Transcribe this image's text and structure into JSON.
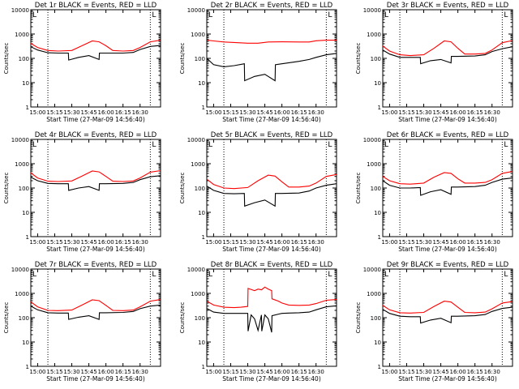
{
  "colors": {
    "events": "#000000",
    "lld": "#ff0000",
    "axes": "#000000",
    "background": "#ffffff"
  },
  "shared": {
    "xlabel": "Start Time (27-Mar-09 14:56:40)",
    "ylabel": "Counts/sec",
    "xticks": [
      "15:00",
      "15:15",
      "15:30",
      "15:45",
      "16:00",
      "16:15",
      "16:30"
    ],
    "yticks": [
      "1",
      "10",
      "100",
      "1000",
      "10000"
    ],
    "corner_marker": "L"
  },
  "chart_data": [
    {
      "type": "line",
      "title": "Det 1r BLACK = Events, RED = LLD",
      "x_range_min": [
        -2,
        36
      ],
      "y_scale": "log",
      "ylim": [
        1,
        10000
      ],
      "vlines_min": [
        3,
        33
      ],
      "series": [
        {
          "name": "RED",
          "color": "#ff0000",
          "x": [
            -2,
            0,
            3,
            6,
            10,
            13,
            16,
            18,
            20,
            22,
            25,
            28,
            30,
            33,
            36
          ],
          "values": [
            410,
            280,
            210,
            200,
            210,
            330,
            520,
            480,
            330,
            210,
            200,
            210,
            280,
            480,
            560
          ]
        },
        {
          "name": "BLACK",
          "color": "#000000",
          "x": [
            -2,
            0,
            3,
            6,
            9,
            9.1,
            12,
            15,
            18,
            18.1,
            20,
            25,
            28,
            30,
            33,
            36
          ],
          "values": [
            300,
            220,
            170,
            165,
            165,
            85,
            110,
            130,
            90,
            165,
            165,
            165,
            175,
            230,
            310,
            340
          ]
        }
      ]
    },
    {
      "type": "line",
      "title": "Det 2r BLACK = Events, RED = LLD",
      "x_range_min": [
        -2,
        36
      ],
      "y_scale": "log",
      "ylim": [
        1,
        10000
      ],
      "vlines_min": [
        3,
        33
      ],
      "series": [
        {
          "name": "RED",
          "color": "#ff0000",
          "x": [
            -2,
            0,
            3,
            6,
            10,
            13,
            16,
            20,
            25,
            28,
            30,
            33,
            36
          ],
          "values": [
            560,
            520,
            470,
            450,
            420,
            420,
            470,
            480,
            470,
            470,
            530,
            560,
            560
          ]
        },
        {
          "name": "BLACK",
          "color": "#000000",
          "x": [
            -2,
            0,
            3,
            6,
            9,
            9.1,
            12,
            15,
            18,
            18.1,
            20,
            25,
            28,
            30,
            33,
            36
          ],
          "values": [
            100,
            55,
            45,
            50,
            60,
            12,
            18,
            22,
            12,
            55,
            60,
            75,
            90,
            110,
            140,
            160
          ]
        }
      ]
    },
    {
      "type": "line",
      "title": "Det 3r BLACK = Events, RED = LLD",
      "x_range_min": [
        -2,
        36
      ],
      "y_scale": "log",
      "ylim": [
        1,
        10000
      ],
      "vlines_min": [
        3,
        33
      ],
      "series": [
        {
          "name": "RED",
          "color": "#ff0000",
          "x": [
            -2,
            0,
            3,
            6,
            10,
            13,
            16,
            18,
            20,
            22,
            25,
            28,
            30,
            33,
            36
          ],
          "values": [
            320,
            200,
            140,
            130,
            140,
            260,
            520,
            480,
            260,
            150,
            150,
            160,
            220,
            440,
            540
          ]
        },
        {
          "name": "BLACK",
          "color": "#000000",
          "x": [
            -2,
            0,
            3,
            6,
            9,
            9.1,
            12,
            15,
            18,
            18.1,
            20,
            25,
            28,
            30,
            33,
            36
          ],
          "values": [
            220,
            150,
            110,
            110,
            110,
            60,
            80,
            90,
            65,
            120,
            120,
            125,
            140,
            190,
            250,
            300
          ]
        }
      ]
    },
    {
      "type": "line",
      "title": "Det 4r BLACK = Events, RED = LLD",
      "x_range_min": [
        -2,
        36
      ],
      "y_scale": "log",
      "ylim": [
        1,
        10000
      ],
      "vlines_min": [
        3,
        33
      ],
      "series": [
        {
          "name": "RED",
          "color": "#ff0000",
          "x": [
            -2,
            0,
            3,
            6,
            10,
            13,
            16,
            18,
            20,
            22,
            25,
            28,
            30,
            33,
            36
          ],
          "values": [
            420,
            260,
            190,
            185,
            195,
            310,
            500,
            460,
            300,
            190,
            185,
            195,
            260,
            450,
            520
          ]
        },
        {
          "name": "BLACK",
          "color": "#000000",
          "x": [
            -2,
            0,
            3,
            6,
            9,
            9.1,
            12,
            15,
            18,
            18.1,
            20,
            25,
            28,
            30,
            33,
            36
          ],
          "values": [
            280,
            200,
            155,
            150,
            150,
            80,
            100,
            115,
            80,
            150,
            150,
            155,
            170,
            220,
            290,
            320
          ]
        }
      ]
    },
    {
      "type": "line",
      "title": "Det 5r BLACK = Events, RED = LLD",
      "x_range_min": [
        -2,
        36
      ],
      "y_scale": "log",
      "ylim": [
        1,
        10000
      ],
      "vlines_min": [
        3,
        33
      ],
      "series": [
        {
          "name": "RED",
          "color": "#ff0000",
          "x": [
            -2,
            0,
            3,
            6,
            10,
            13,
            16,
            18,
            20,
            22,
            25,
            28,
            30,
            33,
            36
          ],
          "values": [
            230,
            140,
            100,
            95,
            105,
            200,
            340,
            310,
            180,
            110,
            110,
            120,
            160,
            300,
            360
          ]
        },
        {
          "name": "BLACK",
          "color": "#000000",
          "x": [
            -2,
            0,
            3,
            6,
            9,
            9.1,
            12,
            15,
            18,
            18.1,
            20,
            25,
            28,
            30,
            33,
            36
          ],
          "values": [
            120,
            80,
            60,
            58,
            60,
            18,
            25,
            32,
            18,
            60,
            60,
            62,
            75,
            100,
            130,
            150
          ]
        }
      ]
    },
    {
      "type": "line",
      "title": "Det 6r BLACK = Events, RED = LLD",
      "x_range_min": [
        -2,
        36
      ],
      "y_scale": "log",
      "ylim": [
        1,
        10000
      ],
      "vlines_min": [
        3,
        33
      ],
      "series": [
        {
          "name": "RED",
          "color": "#ff0000",
          "x": [
            -2,
            0,
            3,
            6,
            10,
            13,
            16,
            18,
            20,
            22,
            25,
            28,
            30,
            33,
            36
          ],
          "values": [
            300,
            200,
            150,
            145,
            160,
            280,
            430,
            400,
            240,
            160,
            160,
            170,
            220,
            400,
            480
          ]
        },
        {
          "name": "BLACK",
          "color": "#000000",
          "x": [
            -2,
            0,
            3,
            6,
            9,
            9.1,
            12,
            15,
            18,
            18.1,
            20,
            25,
            28,
            30,
            33,
            36
          ],
          "values": [
            200,
            130,
            100,
            100,
            105,
            50,
            70,
            85,
            55,
            110,
            110,
            115,
            130,
            170,
            230,
            260
          ]
        }
      ]
    },
    {
      "type": "line",
      "title": "Det 7r BLACK = Events, RED = LLD",
      "x_range_min": [
        -2,
        36
      ],
      "y_scale": "log",
      "ylim": [
        1,
        10000
      ],
      "vlines_min": [
        3,
        33
      ],
      "series": [
        {
          "name": "RED",
          "color": "#ff0000",
          "x": [
            -2,
            0,
            3,
            6,
            10,
            13,
            16,
            18,
            20,
            22,
            25,
            28,
            30,
            33,
            36
          ],
          "values": [
            450,
            280,
            200,
            195,
            205,
            330,
            540,
            500,
            320,
            200,
            195,
            205,
            280,
            480,
            560
          ]
        },
        {
          "name": "BLACK",
          "color": "#000000",
          "x": [
            -2,
            0,
            3,
            6,
            9,
            9.1,
            12,
            15,
            18,
            18.1,
            20,
            25,
            28,
            30,
            33,
            36
          ],
          "values": [
            300,
            210,
            160,
            155,
            155,
            85,
            105,
            120,
            85,
            160,
            160,
            165,
            180,
            235,
            300,
            330
          ]
        }
      ]
    },
    {
      "type": "line",
      "title": "Det 8r BLACK = Events, RED = LLD",
      "x_range_min": [
        -2,
        36
      ],
      "y_scale": "log",
      "ylim": [
        1,
        10000
      ],
      "vlines_min": [
        3,
        33
      ],
      "series": [
        {
          "name": "RED",
          "color": "#ff0000",
          "x": [
            -2,
            0,
            3,
            6,
            8,
            10,
            10.1,
            12,
            13,
            14,
            15,
            16,
            17,
            17.1,
            19,
            20,
            22,
            25,
            28,
            30,
            33,
            36
          ],
          "values": [
            480,
            330,
            270,
            260,
            270,
            290,
            1600,
            1300,
            1500,
            1400,
            1800,
            1500,
            1300,
            600,
            480,
            400,
            330,
            320,
            330,
            380,
            520,
            560
          ]
        },
        {
          "name": "BLACK",
          "color": "#000000",
          "x": [
            -2,
            0,
            3,
            6,
            8,
            10,
            10.1,
            11,
            12,
            13,
            14,
            14.1,
            15,
            16,
            17,
            17.1,
            19,
            20,
            22,
            25,
            28,
            30,
            33,
            36
          ],
          "values": [
            240,
            170,
            150,
            150,
            150,
            150,
            28,
            130,
            90,
            30,
            130,
            28,
            130,
            90,
            25,
            120,
            140,
            150,
            155,
            160,
            170,
            210,
            280,
            310
          ]
        }
      ]
    },
    {
      "type": "line",
      "title": "Det 9r BLACK = Events, RED = LLD",
      "x_range_min": [
        -2,
        36
      ],
      "y_scale": "log",
      "ylim": [
        1,
        10000
      ],
      "vlines_min": [
        3,
        33
      ],
      "series": [
        {
          "name": "RED",
          "color": "#ff0000",
          "x": [
            -2,
            0,
            3,
            6,
            10,
            13,
            16,
            18,
            20,
            22,
            25,
            28,
            30,
            33,
            36
          ],
          "values": [
            320,
            210,
            160,
            155,
            165,
            290,
            480,
            440,
            270,
            165,
            160,
            170,
            230,
            400,
            460
          ]
        },
        {
          "name": "BLACK",
          "color": "#000000",
          "x": [
            -2,
            0,
            3,
            6,
            9,
            9.1,
            12,
            15,
            18,
            18.1,
            20,
            25,
            28,
            30,
            33,
            36
          ],
          "values": [
            220,
            150,
            115,
            110,
            110,
            60,
            80,
            95,
            62,
            115,
            115,
            120,
            135,
            180,
            240,
            270
          ]
        }
      ]
    }
  ]
}
